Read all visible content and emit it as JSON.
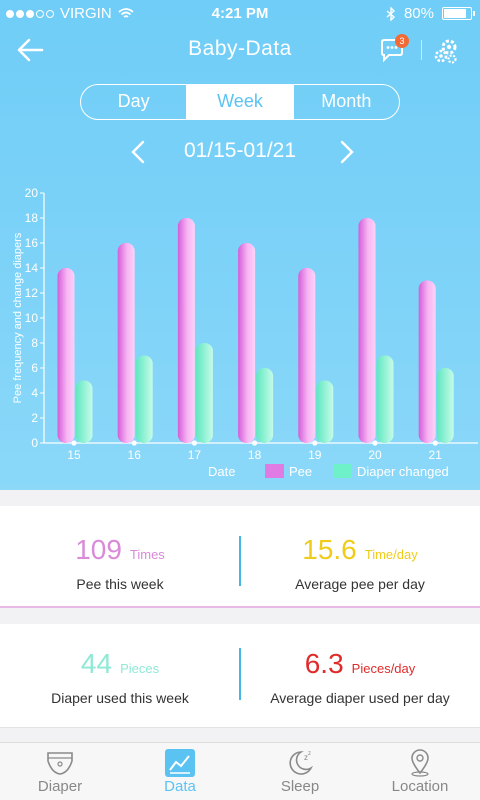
{
  "status_bar": {
    "carrier": "VIRGIN",
    "time": "4:21 PM",
    "battery": "80%",
    "battery_level": 0.8
  },
  "nav": {
    "title": "Baby-Data",
    "chat_badge": "3"
  },
  "segments": [
    {
      "label": "Day",
      "active": false
    },
    {
      "label": "Week",
      "active": true
    },
    {
      "label": "Month",
      "active": false
    }
  ],
  "range": {
    "label": "01/15-01/21"
  },
  "colors": {
    "accent": "#5bc3f2",
    "pee": "#e07be3",
    "diaper": "#6ef0c8",
    "pee_num": "#d98ad9",
    "avg_pee": "#f0cc1a",
    "diaper_num": "#8fe9d6",
    "avg_diaper": "#e02b2b"
  },
  "chart_data": {
    "type": "bar",
    "categories": [
      "15",
      "16",
      "17",
      "18",
      "19",
      "20",
      "21"
    ],
    "series": [
      {
        "name": "Pee",
        "values": [
          14,
          16,
          18,
          16,
          14,
          18,
          13
        ]
      },
      {
        "name": "Diaper changed",
        "values": [
          5,
          7,
          8,
          6,
          5,
          7,
          6
        ]
      }
    ],
    "xlabel": "Date",
    "ylabel": "Pee frequency and change diapers",
    "ylim": [
      0,
      20
    ],
    "yticks": [
      "0",
      "2",
      "4",
      "6",
      "8",
      "10",
      "12",
      "14",
      "16",
      "18",
      "20"
    ],
    "legend": "bottom-right",
    "grid": false
  },
  "stats": {
    "pee_total": {
      "value": "109",
      "unit": "Times",
      "desc": "Pee this week"
    },
    "pee_avg": {
      "value": "15.6",
      "unit": "Time/day",
      "desc": "Average pee per day"
    },
    "diaper_total": {
      "value": "44",
      "unit": "Pieces",
      "desc": "Diaper used this week"
    },
    "diaper_avg": {
      "value": "6.3",
      "unit": "Pieces/day",
      "desc": "Average diaper used per day"
    }
  },
  "tabs": [
    {
      "label": "Diaper",
      "icon": "diaper-icon",
      "active": false
    },
    {
      "label": "Data",
      "icon": "chart-icon",
      "active": true
    },
    {
      "label": "Sleep",
      "icon": "moon-icon",
      "active": false
    },
    {
      "label": "Location",
      "icon": "location-pin-icon",
      "active": false
    }
  ]
}
